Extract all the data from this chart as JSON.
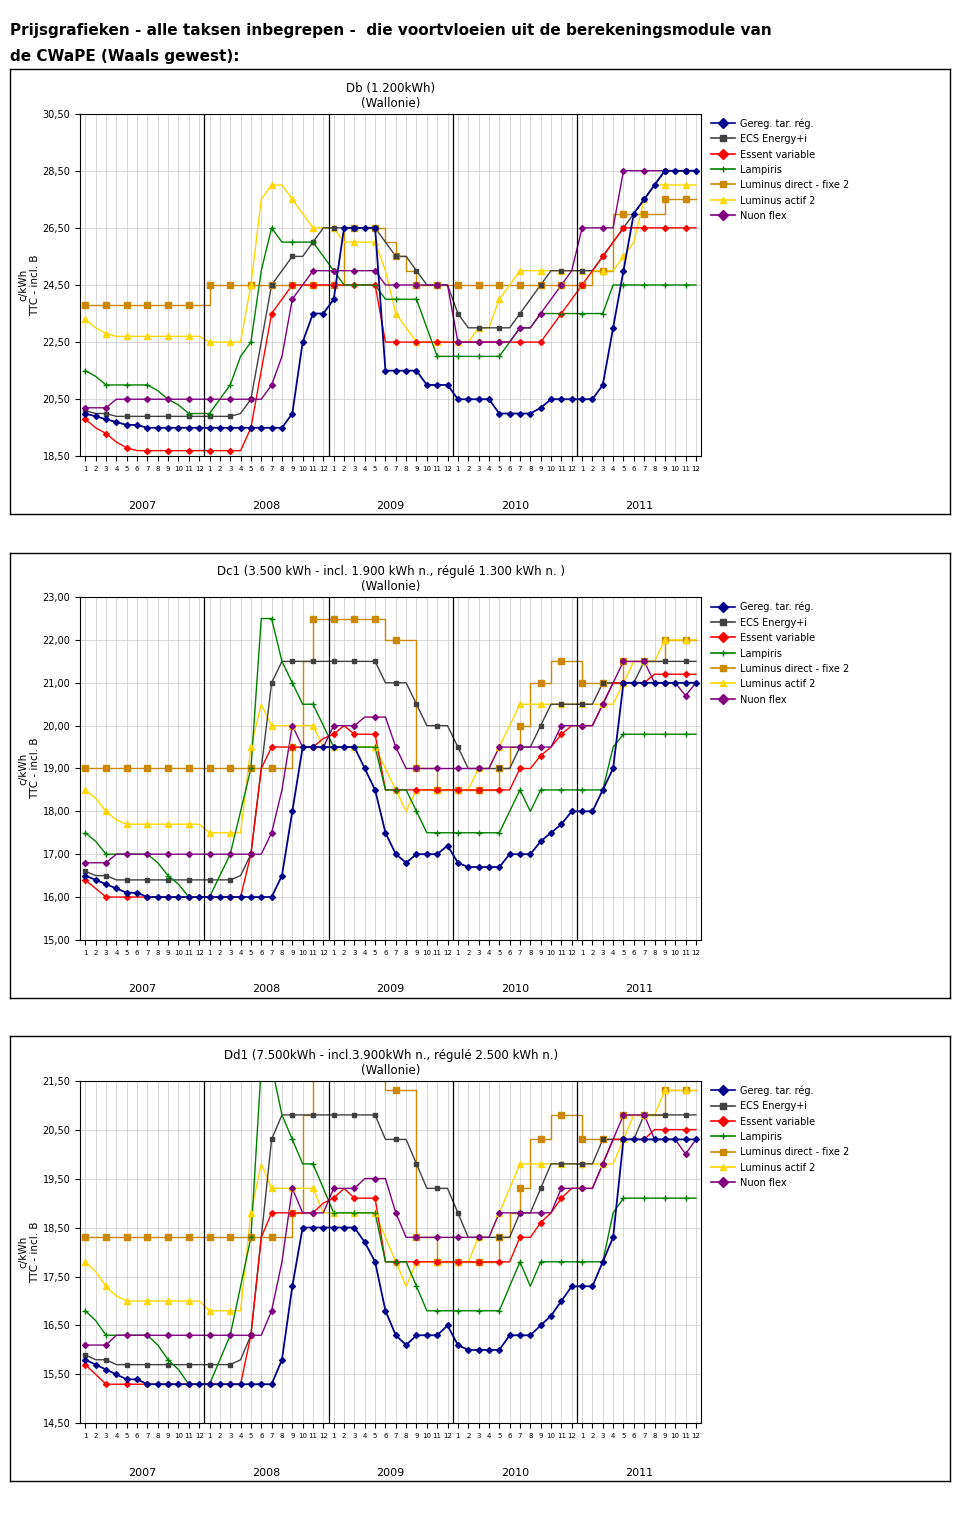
{
  "page_title_line1": "Prijsgrafieken - alle taksen inbegrepen -  die voortvloeien uit de berekeningsmodule van",
  "page_title_line2": "de CWaPE (Waals gewest):",
  "charts": [
    {
      "title": "Db (1.200kWh)\n(Wallonie)",
      "ylim": [
        18.5,
        30.5
      ],
      "yticks": [
        18.5,
        20.5,
        22.5,
        24.5,
        26.5,
        28.5,
        30.5
      ],
      "ytick_labels": [
        "18,50",
        "20,50",
        "22,50",
        "24,50",
        "26,50",
        "28,50",
        "30,50"
      ]
    },
    {
      "title": "Dc1 (3.500 kWh - incl. 1.900 kWh n., régulé 1.300 kWh n. )\n(Wallonie)",
      "ylim": [
        15.0,
        23.0
      ],
      "yticks": [
        15.0,
        16.0,
        17.0,
        18.0,
        19.0,
        20.0,
        21.0,
        22.0,
        23.0
      ],
      "ytick_labels": [
        "15,00",
        "16,00",
        "17,00",
        "18,00",
        "19,00",
        "20,00",
        "21,00",
        "22,00",
        "23,00"
      ]
    },
    {
      "title": "Dd1 (7.500kWh - incl.3.900kWh n., régulé 2.500 kWh n.)\n(Wallonie)",
      "ylim": [
        14.5,
        21.5
      ],
      "yticks": [
        14.5,
        15.5,
        16.5,
        17.5,
        18.5,
        19.5,
        20.5,
        21.5
      ],
      "ytick_labels": [
        "14,50",
        "15,50",
        "16,50",
        "17,50",
        "18,50",
        "19,50",
        "20,50",
        "21,50"
      ]
    }
  ],
  "n_points": 60,
  "years": [
    "2007",
    "2008",
    "2009",
    "2010",
    "2011"
  ],
  "colors": {
    "gereg": "#00008B",
    "ecs": "#404040",
    "essent": "#FF0000",
    "lampiris": "#008000",
    "luminus_fixe": "#CC8800",
    "luminus_actif": "#FFD700",
    "nuon": "#800080"
  },
  "series_db": {
    "gereg": [
      20.0,
      19.9,
      19.8,
      19.7,
      19.6,
      19.6,
      19.5,
      19.5,
      19.5,
      19.5,
      19.5,
      19.5,
      19.5,
      19.5,
      19.5,
      19.5,
      19.5,
      19.5,
      19.5,
      19.5,
      20.0,
      22.5,
      23.5,
      23.5,
      24.0,
      26.5,
      26.5,
      26.5,
      26.5,
      21.5,
      21.5,
      21.5,
      21.5,
      21.0,
      21.0,
      21.0,
      20.5,
      20.5,
      20.5,
      20.5,
      20.0,
      20.0,
      20.0,
      20.0,
      20.2,
      20.5,
      20.5,
      20.5,
      20.5,
      20.5,
      21.0,
      23.0,
      25.0,
      27.0,
      27.5,
      28.0,
      28.5,
      28.5,
      28.5,
      28.5
    ],
    "ecs": [
      20.1,
      20.0,
      20.0,
      19.9,
      19.9,
      19.9,
      19.9,
      19.9,
      19.9,
      19.9,
      19.9,
      19.9,
      19.9,
      19.9,
      19.9,
      20.0,
      20.5,
      22.5,
      24.5,
      25.0,
      25.5,
      25.5,
      26.0,
      26.5,
      26.5,
      26.5,
      26.5,
      26.5,
      26.5,
      26.0,
      25.5,
      25.5,
      25.0,
      24.5,
      24.5,
      24.5,
      23.5,
      23.0,
      23.0,
      23.0,
      23.0,
      23.0,
      23.5,
      24.0,
      24.5,
      25.0,
      25.0,
      25.0,
      25.0,
      25.0,
      25.5,
      26.0,
      26.5,
      27.0,
      27.5,
      28.0,
      28.5,
      28.5,
      28.5,
      28.5
    ],
    "essent": [
      19.8,
      19.5,
      19.3,
      19.0,
      18.8,
      18.7,
      18.7,
      18.7,
      18.7,
      18.7,
      18.7,
      18.7,
      18.7,
      18.7,
      18.7,
      18.7,
      19.5,
      21.5,
      23.5,
      24.0,
      24.5,
      24.5,
      24.5,
      24.5,
      24.5,
      24.5,
      24.5,
      24.5,
      24.5,
      22.5,
      22.5,
      22.5,
      22.5,
      22.5,
      22.5,
      22.5,
      22.5,
      22.5,
      22.5,
      22.5,
      22.5,
      22.5,
      22.5,
      22.5,
      22.5,
      23.0,
      23.5,
      24.0,
      24.5,
      25.0,
      25.5,
      26.0,
      26.5,
      26.5,
      26.5,
      26.5,
      26.5,
      26.5,
      26.5,
      26.5
    ],
    "lampiris": [
      21.5,
      21.3,
      21.0,
      21.0,
      21.0,
      21.0,
      21.0,
      20.8,
      20.5,
      20.3,
      20.0,
      20.0,
      20.0,
      20.5,
      21.0,
      22.0,
      22.5,
      25.0,
      26.5,
      26.0,
      26.0,
      26.0,
      26.0,
      25.5,
      25.0,
      24.5,
      24.5,
      24.5,
      24.5,
      24.0,
      24.0,
      24.0,
      24.0,
      23.0,
      22.0,
      22.0,
      22.0,
      22.0,
      22.0,
      22.0,
      22.0,
      22.5,
      23.0,
      23.0,
      23.5,
      23.5,
      23.5,
      23.5,
      23.5,
      23.5,
      23.5,
      24.5,
      24.5,
      24.5,
      24.5,
      24.5,
      24.5,
      24.5,
      24.5,
      24.5
    ],
    "luminus_fixe": [
      23.8,
      23.8,
      23.8,
      23.8,
      23.8,
      23.8,
      23.8,
      23.8,
      23.8,
      23.8,
      23.8,
      23.8,
      24.5,
      24.5,
      24.5,
      24.5,
      24.5,
      24.5,
      24.5,
      24.5,
      24.5,
      24.5,
      24.5,
      24.5,
      24.5,
      26.5,
      26.5,
      26.5,
      26.5,
      26.0,
      25.5,
      25.0,
      24.5,
      24.5,
      24.5,
      24.5,
      24.5,
      24.5,
      24.5,
      24.5,
      24.5,
      24.5,
      24.5,
      24.5,
      24.5,
      24.5,
      24.5,
      24.5,
      24.5,
      25.0,
      25.0,
      27.0,
      27.0,
      27.0,
      27.0,
      27.0,
      27.5,
      27.5,
      27.5,
      27.5
    ],
    "luminus_actif": [
      23.3,
      23.0,
      22.8,
      22.7,
      22.7,
      22.7,
      22.7,
      22.7,
      22.7,
      22.7,
      22.7,
      22.7,
      22.5,
      22.5,
      22.5,
      22.5,
      24.5,
      27.5,
      28.0,
      28.0,
      27.5,
      27.0,
      26.5,
      26.5,
      26.5,
      26.0,
      26.0,
      26.0,
      26.0,
      25.0,
      23.5,
      23.0,
      22.5,
      22.5,
      22.5,
      22.5,
      22.5,
      22.5,
      23.0,
      23.0,
      24.0,
      24.5,
      25.0,
      25.0,
      25.0,
      25.0,
      25.0,
      25.0,
      25.0,
      25.0,
      25.0,
      25.0,
      25.5,
      26.0,
      27.5,
      28.0,
      28.0,
      28.0,
      28.0,
      28.0
    ],
    "nuon": [
      20.2,
      20.2,
      20.2,
      20.5,
      20.5,
      20.5,
      20.5,
      20.5,
      20.5,
      20.5,
      20.5,
      20.5,
      20.5,
      20.5,
      20.5,
      20.5,
      20.5,
      20.5,
      21.0,
      22.0,
      24.0,
      24.5,
      25.0,
      25.0,
      25.0,
      25.0,
      25.0,
      25.0,
      25.0,
      24.5,
      24.5,
      24.5,
      24.5,
      24.5,
      24.5,
      24.5,
      22.5,
      22.5,
      22.5,
      22.5,
      22.5,
      22.5,
      23.0,
      23.0,
      23.5,
      24.0,
      24.5,
      25.0,
      26.5,
      26.5,
      26.5,
      26.5,
      28.5,
      28.5,
      28.5,
      28.5,
      28.5,
      28.5,
      28.5,
      28.5
    ]
  },
  "series_dc1": {
    "gereg": [
      16.5,
      16.4,
      16.3,
      16.2,
      16.1,
      16.1,
      16.0,
      16.0,
      16.0,
      16.0,
      16.0,
      16.0,
      16.0,
      16.0,
      16.0,
      16.0,
      16.0,
      16.0,
      16.0,
      16.5,
      18.0,
      19.5,
      19.5,
      19.5,
      19.5,
      19.5,
      19.5,
      19.0,
      18.5,
      17.5,
      17.0,
      16.8,
      17.0,
      17.0,
      17.0,
      17.2,
      16.8,
      16.7,
      16.7,
      16.7,
      16.7,
      17.0,
      17.0,
      17.0,
      17.3,
      17.5,
      17.7,
      18.0,
      18.0,
      18.0,
      18.5,
      19.0,
      21.0,
      21.0,
      21.0,
      21.0,
      21.0,
      21.0,
      21.0,
      21.0
    ],
    "ecs": [
      16.6,
      16.5,
      16.5,
      16.4,
      16.4,
      16.4,
      16.4,
      16.4,
      16.4,
      16.4,
      16.4,
      16.4,
      16.4,
      16.4,
      16.4,
      16.5,
      17.0,
      19.0,
      21.0,
      21.5,
      21.5,
      21.5,
      21.5,
      21.5,
      21.5,
      21.5,
      21.5,
      21.5,
      21.5,
      21.0,
      21.0,
      21.0,
      20.5,
      20.0,
      20.0,
      20.0,
      19.5,
      19.0,
      19.0,
      19.0,
      19.0,
      19.0,
      19.5,
      19.5,
      20.0,
      20.5,
      20.5,
      20.5,
      20.5,
      20.5,
      21.0,
      21.0,
      21.0,
      21.0,
      21.5,
      21.5,
      21.5,
      21.5,
      21.5,
      21.5
    ],
    "essent": [
      16.4,
      16.2,
      16.0,
      16.0,
      16.0,
      16.0,
      16.0,
      16.0,
      16.0,
      16.0,
      16.0,
      16.0,
      16.0,
      16.0,
      16.0,
      16.0,
      17.0,
      19.0,
      19.5,
      19.5,
      19.5,
      19.5,
      19.5,
      19.7,
      19.8,
      20.0,
      19.8,
      19.8,
      19.8,
      18.5,
      18.5,
      18.5,
      18.5,
      18.5,
      18.5,
      18.5,
      18.5,
      18.5,
      18.5,
      18.5,
      18.5,
      18.5,
      19.0,
      19.0,
      19.3,
      19.5,
      19.8,
      20.0,
      20.0,
      20.0,
      20.5,
      21.0,
      21.0,
      21.0,
      21.0,
      21.2,
      21.2,
      21.2,
      21.2,
      21.2
    ],
    "lampiris": [
      17.5,
      17.3,
      17.0,
      17.0,
      17.0,
      17.0,
      17.0,
      16.8,
      16.5,
      16.3,
      16.0,
      16.0,
      16.0,
      16.5,
      17.0,
      18.0,
      19.0,
      22.5,
      22.5,
      21.5,
      21.0,
      20.5,
      20.5,
      20.0,
      19.5,
      19.5,
      19.5,
      19.5,
      19.5,
      18.5,
      18.5,
      18.5,
      18.0,
      17.5,
      17.5,
      17.5,
      17.5,
      17.5,
      17.5,
      17.5,
      17.5,
      18.0,
      18.5,
      18.0,
      18.5,
      18.5,
      18.5,
      18.5,
      18.5,
      18.5,
      18.5,
      19.5,
      19.8,
      19.8,
      19.8,
      19.8,
      19.8,
      19.8,
      19.8,
      19.8
    ],
    "luminus_fixe": [
      19.0,
      19.0,
      19.0,
      19.0,
      19.0,
      19.0,
      19.0,
      19.0,
      19.0,
      19.0,
      19.0,
      19.0,
      19.0,
      19.0,
      19.0,
      19.0,
      19.0,
      19.0,
      19.0,
      19.0,
      19.5,
      21.5,
      22.5,
      22.5,
      22.5,
      22.5,
      22.5,
      22.5,
      22.5,
      22.0,
      22.0,
      22.0,
      19.0,
      19.0,
      18.5,
      18.5,
      18.5,
      18.5,
      18.5,
      18.5,
      19.0,
      19.5,
      20.0,
      21.0,
      21.0,
      21.5,
      21.5,
      21.5,
      21.0,
      21.0,
      21.0,
      21.0,
      21.5,
      21.5,
      21.5,
      21.5,
      22.0,
      22.0,
      22.0,
      22.0
    ],
    "luminus_actif": [
      18.5,
      18.3,
      18.0,
      17.8,
      17.7,
      17.7,
      17.7,
      17.7,
      17.7,
      17.7,
      17.7,
      17.7,
      17.5,
      17.5,
      17.5,
      17.5,
      19.5,
      20.5,
      20.0,
      20.0,
      20.0,
      20.0,
      20.0,
      19.5,
      19.5,
      19.5,
      19.5,
      19.5,
      19.5,
      19.0,
      18.5,
      18.0,
      18.5,
      18.5,
      18.5,
      18.5,
      18.5,
      18.5,
      19.0,
      19.0,
      19.5,
      20.0,
      20.5,
      20.5,
      20.5,
      20.5,
      20.5,
      20.5,
      20.5,
      20.5,
      20.5,
      20.5,
      21.0,
      21.5,
      21.5,
      21.5,
      22.0,
      22.0,
      22.0,
      22.0
    ],
    "nuon": [
      16.8,
      16.8,
      16.8,
      17.0,
      17.0,
      17.0,
      17.0,
      17.0,
      17.0,
      17.0,
      17.0,
      17.0,
      17.0,
      17.0,
      17.0,
      17.0,
      17.0,
      17.0,
      17.5,
      18.5,
      20.0,
      19.5,
      19.5,
      19.5,
      20.0,
      20.0,
      20.0,
      20.2,
      20.2,
      20.2,
      19.5,
      19.0,
      19.0,
      19.0,
      19.0,
      19.0,
      19.0,
      19.0,
      19.0,
      19.0,
      19.5,
      19.5,
      19.5,
      19.5,
      19.5,
      19.5,
      20.0,
      20.0,
      20.0,
      20.0,
      20.5,
      21.0,
      21.5,
      21.5,
      21.5,
      21.0,
      21.0,
      21.0,
      20.7,
      21.0
    ]
  },
  "series_dd1": {
    "gereg": [
      15.8,
      15.7,
      15.6,
      15.5,
      15.4,
      15.4,
      15.3,
      15.3,
      15.3,
      15.3,
      15.3,
      15.3,
      15.3,
      15.3,
      15.3,
      15.3,
      15.3,
      15.3,
      15.3,
      15.8,
      17.3,
      18.5,
      18.5,
      18.5,
      18.5,
      18.5,
      18.5,
      18.2,
      17.8,
      16.8,
      16.3,
      16.1,
      16.3,
      16.3,
      16.3,
      16.5,
      16.1,
      16.0,
      16.0,
      16.0,
      16.0,
      16.3,
      16.3,
      16.3,
      16.5,
      16.7,
      17.0,
      17.3,
      17.3,
      17.3,
      17.8,
      18.3,
      20.3,
      20.3,
      20.3,
      20.3,
      20.3,
      20.3,
      20.3,
      20.3
    ],
    "ecs": [
      15.9,
      15.8,
      15.8,
      15.7,
      15.7,
      15.7,
      15.7,
      15.7,
      15.7,
      15.7,
      15.7,
      15.7,
      15.7,
      15.7,
      15.7,
      15.8,
      16.3,
      18.3,
      20.3,
      20.8,
      20.8,
      20.8,
      20.8,
      20.8,
      20.8,
      20.8,
      20.8,
      20.8,
      20.8,
      20.3,
      20.3,
      20.3,
      19.8,
      19.3,
      19.3,
      19.3,
      18.8,
      18.3,
      18.3,
      18.3,
      18.3,
      18.3,
      18.8,
      18.8,
      19.3,
      19.8,
      19.8,
      19.8,
      19.8,
      19.8,
      20.3,
      20.3,
      20.3,
      20.3,
      20.8,
      20.8,
      20.8,
      20.8,
      20.8,
      20.8
    ],
    "essent": [
      15.7,
      15.5,
      15.3,
      15.3,
      15.3,
      15.3,
      15.3,
      15.3,
      15.3,
      15.3,
      15.3,
      15.3,
      15.3,
      15.3,
      15.3,
      15.3,
      16.3,
      18.3,
      18.8,
      18.8,
      18.8,
      18.8,
      18.8,
      19.0,
      19.1,
      19.3,
      19.1,
      19.1,
      19.1,
      17.8,
      17.8,
      17.8,
      17.8,
      17.8,
      17.8,
      17.8,
      17.8,
      17.8,
      17.8,
      17.8,
      17.8,
      17.8,
      18.3,
      18.3,
      18.6,
      18.8,
      19.1,
      19.3,
      19.3,
      19.3,
      19.8,
      20.3,
      20.3,
      20.3,
      20.3,
      20.5,
      20.5,
      20.5,
      20.5,
      20.5
    ],
    "lampiris": [
      16.8,
      16.6,
      16.3,
      16.3,
      16.3,
      16.3,
      16.3,
      16.1,
      15.8,
      15.6,
      15.3,
      15.3,
      15.3,
      15.8,
      16.3,
      17.3,
      18.3,
      21.8,
      21.8,
      20.8,
      20.3,
      19.8,
      19.8,
      19.3,
      18.8,
      18.8,
      18.8,
      18.8,
      18.8,
      17.8,
      17.8,
      17.8,
      17.3,
      16.8,
      16.8,
      16.8,
      16.8,
      16.8,
      16.8,
      16.8,
      16.8,
      17.3,
      17.8,
      17.3,
      17.8,
      17.8,
      17.8,
      17.8,
      17.8,
      17.8,
      17.8,
      18.8,
      19.1,
      19.1,
      19.1,
      19.1,
      19.1,
      19.1,
      19.1,
      19.1
    ],
    "luminus_fixe": [
      18.3,
      18.3,
      18.3,
      18.3,
      18.3,
      18.3,
      18.3,
      18.3,
      18.3,
      18.3,
      18.3,
      18.3,
      18.3,
      18.3,
      18.3,
      18.3,
      18.3,
      18.3,
      18.3,
      18.3,
      18.8,
      20.8,
      21.8,
      21.8,
      21.8,
      21.8,
      21.8,
      21.8,
      21.8,
      21.3,
      21.3,
      21.3,
      18.3,
      18.3,
      17.8,
      17.8,
      17.8,
      17.8,
      17.8,
      17.8,
      18.3,
      18.8,
      19.3,
      20.3,
      20.3,
      20.8,
      20.8,
      20.8,
      20.3,
      20.3,
      20.3,
      20.3,
      20.8,
      20.8,
      20.8,
      20.8,
      21.3,
      21.3,
      21.3,
      21.3
    ],
    "luminus_actif": [
      17.8,
      17.6,
      17.3,
      17.1,
      17.0,
      17.0,
      17.0,
      17.0,
      17.0,
      17.0,
      17.0,
      17.0,
      16.8,
      16.8,
      16.8,
      16.8,
      18.8,
      19.8,
      19.3,
      19.3,
      19.3,
      19.3,
      19.3,
      18.8,
      18.8,
      18.8,
      18.8,
      18.8,
      18.8,
      18.3,
      17.8,
      17.3,
      17.8,
      17.8,
      17.8,
      17.8,
      17.8,
      17.8,
      18.3,
      18.3,
      18.8,
      19.3,
      19.8,
      19.8,
      19.8,
      19.8,
      19.8,
      19.8,
      19.8,
      19.8,
      19.8,
      19.8,
      20.3,
      20.8,
      20.8,
      20.8,
      21.3,
      21.3,
      21.3,
      21.3
    ],
    "nuon": [
      16.1,
      16.1,
      16.1,
      16.3,
      16.3,
      16.3,
      16.3,
      16.3,
      16.3,
      16.3,
      16.3,
      16.3,
      16.3,
      16.3,
      16.3,
      16.3,
      16.3,
      16.3,
      16.8,
      17.8,
      19.3,
      18.8,
      18.8,
      18.8,
      19.3,
      19.3,
      19.3,
      19.5,
      19.5,
      19.5,
      18.8,
      18.3,
      18.3,
      18.3,
      18.3,
      18.3,
      18.3,
      18.3,
      18.3,
      18.3,
      18.8,
      18.8,
      18.8,
      18.8,
      18.8,
      18.8,
      19.3,
      19.3,
      19.3,
      19.3,
      19.8,
      20.3,
      20.8,
      20.8,
      20.8,
      20.3,
      20.3,
      20.3,
      20.0,
      20.3
    ]
  },
  "legend_entries": [
    {
      "label": "Gereg. tar. rég.",
      "key": "gereg",
      "marker": "D",
      "color": "#00008B"
    },
    {
      "label": "ECS Energy+i",
      "key": "ecs",
      "marker": "s",
      "color": "#404040"
    },
    {
      "label": "Essent variable",
      "key": "essent",
      "marker": "D",
      "color": "#FF0000"
    },
    {
      "label": "Lampiris",
      "key": "lampiris",
      "marker": "+",
      "color": "#008000"
    },
    {
      "label": "Luminus direct - fixe 2",
      "key": "luminus_fixe",
      "marker": "s",
      "color": "#CC8800"
    },
    {
      "label": "Luminus actif 2",
      "key": "luminus_actif",
      "marker": "^",
      "color": "#FFD700"
    },
    {
      "label": "Nuon flex",
      "key": "nuon",
      "marker": "D",
      "color": "#800080"
    }
  ]
}
